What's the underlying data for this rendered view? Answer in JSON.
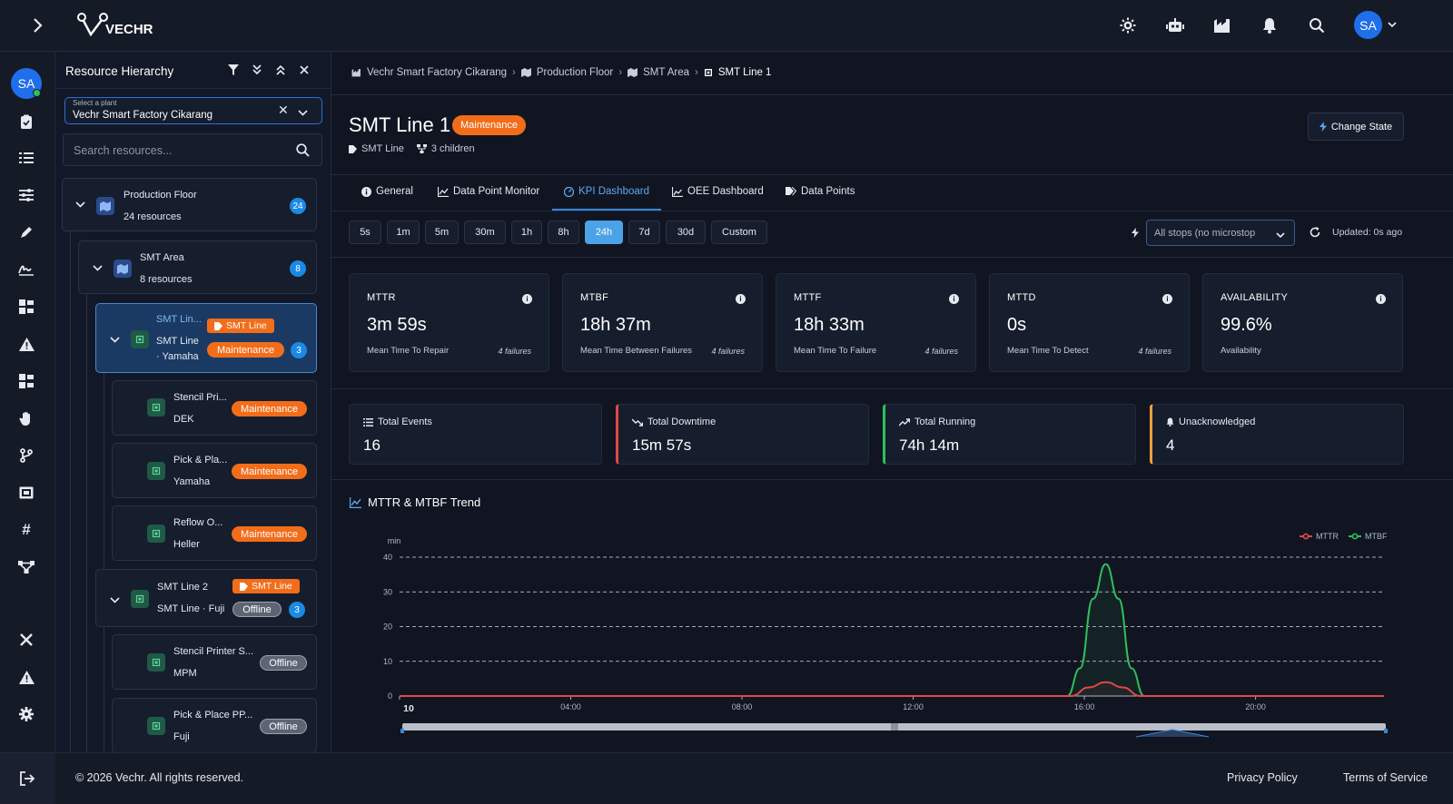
{
  "brand": "VECHR",
  "user": {
    "initials": "SA"
  },
  "panel": {
    "title": "Resource Hierarchy",
    "plant_label": "Select a plant",
    "plant_value": "Vechr Smart Factory Cikarang",
    "search_placeholder": "Search resources..."
  },
  "tree": {
    "production_floor": {
      "name": "Production Floor",
      "sub": "24 resources",
      "count": "24"
    },
    "smt_area": {
      "name": "SMT Area",
      "sub": "8 resources",
      "count": "8"
    },
    "smt_line1": {
      "name": "SMT Lin...",
      "sub1": "SMT Line",
      "sub2": "· Yamaha",
      "tag": "SMT Line",
      "status": "Maintenance",
      "count": "3"
    },
    "stencil1": {
      "name": "Stencil Pri...",
      "sub": "DEK",
      "status": "Maintenance"
    },
    "pickplace1": {
      "name": "Pick & Pla...",
      "sub": "Yamaha",
      "status": "Maintenance"
    },
    "reflow1": {
      "name": "Reflow O...",
      "sub": "Heller",
      "status": "Maintenance"
    },
    "smt_line2": {
      "name": "SMT Line 2",
      "sub": "SMT Line · Fuji",
      "tag": "SMT Line",
      "status": "Offline",
      "count": "3"
    },
    "stencil2": {
      "name": "Stencil Printer S...",
      "sub": "MPM",
      "status": "Offline"
    },
    "pickplace2": {
      "name": "Pick & Place PP...",
      "sub": "Fuji",
      "status": "Offline"
    }
  },
  "breadcrumb": [
    "Vechr Smart Factory Cikarang",
    "Production Floor",
    "SMT Area",
    "SMT Line 1"
  ],
  "header": {
    "title": "SMT Line 1",
    "status": "Maintenance",
    "type": "SMT Line",
    "children": "3 children",
    "change_state": "Change State"
  },
  "tabs": [
    "General",
    "Data Point Monitor",
    "KPI Dashboard",
    "OEE Dashboard",
    "Data Points"
  ],
  "ranges": [
    "5s",
    "1m",
    "5m",
    "30m",
    "1h",
    "8h",
    "24h",
    "7d",
    "30d",
    "Custom"
  ],
  "selected_range": "24h",
  "stops_filter": "All stops (no microstop",
  "updated": "Updated: 0s ago",
  "kpis": [
    {
      "key": "MTTR",
      "value": "3m 59s",
      "desc": "Mean Time To Repair",
      "failures": "4 failures"
    },
    {
      "key": "MTBF",
      "value": "18h 37m",
      "desc": "Mean Time Between Failures",
      "failures": "4 failures"
    },
    {
      "key": "MTTF",
      "value": "18h 33m",
      "desc": "Mean Time To Failure",
      "failures": "4 failures"
    },
    {
      "key": "MTTD",
      "value": "0s",
      "desc": "Mean Time To Detect",
      "failures": "4 failures"
    },
    {
      "key": "AVAILABILITY",
      "value": "99.6%",
      "desc": "Availability",
      "failures": ""
    }
  ],
  "stats": [
    {
      "label": "Total Events",
      "value": "16",
      "accent": ""
    },
    {
      "label": "Total Downtime",
      "value": "15m 57s",
      "accent": "#e04848"
    },
    {
      "label": "Total Running",
      "value": "74h 14m",
      "accent": "#2fbf5b"
    },
    {
      "label": "Unacknowledged",
      "value": "4",
      "accent": "#e9a23b"
    }
  ],
  "trend_title": "MTTR & MTBF Trend",
  "chart_data": {
    "type": "line",
    "ylabel": "min",
    "ylim": [
      0,
      40
    ],
    "yticks": [
      0,
      10,
      20,
      30,
      40
    ],
    "xtick_labels": [
      "10",
      "04:00",
      "08:00",
      "12:00",
      "16:00",
      "20:00"
    ],
    "xtick_hours": [
      0,
      4,
      8,
      12,
      16,
      20
    ],
    "xlim": [
      0,
      23
    ],
    "legend_position": "top-right",
    "grid": true,
    "series": [
      {
        "name": "MTTR",
        "color": "#e04848",
        "x": [
          0,
          15.7,
          16.1,
          16.5,
          16.9,
          17.3,
          23
        ],
        "y": [
          0,
          0,
          2.5,
          4,
          2.5,
          0,
          0
        ]
      },
      {
        "name": "MTBF",
        "color": "#2fbf5b",
        "x": [
          0,
          15.6,
          15.9,
          16.2,
          16.5,
          16.8,
          17.1,
          17.4,
          23
        ],
        "y": [
          0,
          0,
          8,
          28,
          38,
          28,
          8,
          0,
          0
        ]
      }
    ]
  },
  "footer": {
    "copyright": "© 2026 Vechr. All rights reserved.",
    "privacy": "Privacy Policy",
    "terms": "Terms of Service"
  },
  "colors": {
    "accent": "#1f6feb",
    "maintenance": "#f26d1a",
    "offline": "#5d6473"
  }
}
